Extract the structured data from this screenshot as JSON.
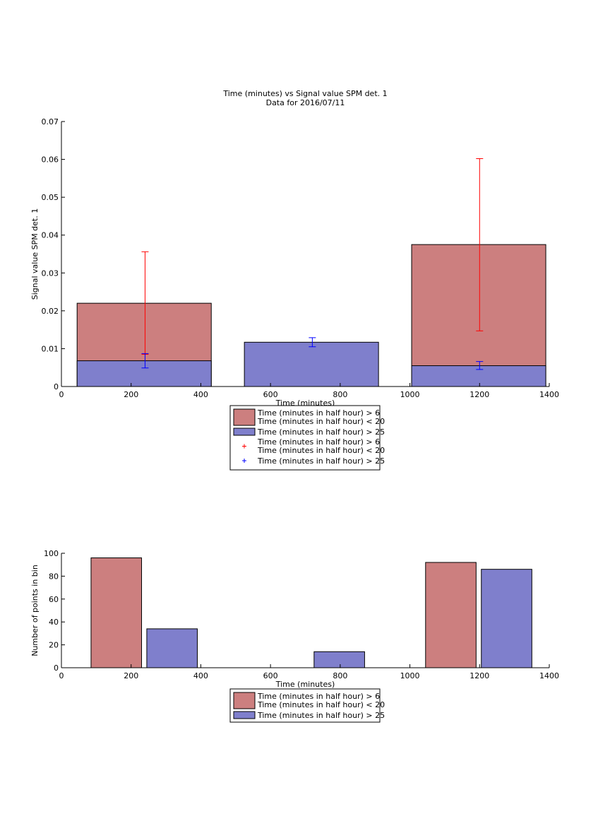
{
  "chart_data": [
    {
      "type": "bar",
      "title": "Time (minutes) vs Signal value SPM det. 1",
      "subtitle": "Data for 2016/07/11",
      "xlabel": "Time (minutes)",
      "ylabel": "Signal value SPM det. 1",
      "xlim": [
        0,
        1400
      ],
      "ylim": [
        0,
        0.07
      ],
      "xticks": [
        "0",
        "200",
        "400",
        "600",
        "800",
        "1000",
        "1200",
        "1400"
      ],
      "yticks": [
        "0",
        "0.01",
        "0.02",
        "0.03",
        "0.04",
        "0.05",
        "0.06",
        "0.07"
      ],
      "grid": false,
      "legend_position": "bottom-outside",
      "legend": [
        "Time (minutes in half hour) > 6\nTime (minutes in half hour) < 20",
        "Time (minutes in half hour) > 25",
        "Time (minutes in half hour) > 6\nTime (minutes in half hour) < 20",
        "Time (minutes in half hour) > 25"
      ],
      "bar_series": [
        {
          "color": "#cc7f7f",
          "bars": [
            {
              "x0": 45,
              "x1": 430,
              "value": 0.022
            },
            {
              "x0": 1005,
              "x1": 1390,
              "value": 0.0375
            }
          ]
        },
        {
          "color": "#7f7fcc",
          "bars": [
            {
              "x0": 45,
              "x1": 430,
              "value": 0.0068
            },
            {
              "x0": 525,
              "x1": 910,
              "value": 0.0117
            },
            {
              "x0": 1005,
              "x1": 1390,
              "value": 0.0055
            }
          ]
        }
      ],
      "errorbar_series": [
        {
          "color": "#ff0000",
          "points": [
            {
              "x": 240,
              "y": 0.022,
              "low": 0.0085,
              "high": 0.0356
            },
            {
              "x": 1200,
              "y": 0.0375,
              "low": 0.0147,
              "high": 0.0602
            }
          ]
        },
        {
          "color": "#0000ff",
          "points": [
            {
              "x": 240,
              "y": 0.0068,
              "low": 0.0049,
              "high": 0.0087
            },
            {
              "x": 720,
              "y": 0.0117,
              "low": 0.0105,
              "high": 0.0129
            },
            {
              "x": 1200,
              "y": 0.0055,
              "low": 0.0045,
              "high": 0.0066
            }
          ]
        }
      ]
    },
    {
      "type": "bar",
      "xlabel": "Time (minutes)",
      "ylabel": "Number of points in bin",
      "xlim": [
        0,
        1400
      ],
      "ylim": [
        0,
        100
      ],
      "xticks": [
        "0",
        "200",
        "400",
        "600",
        "800",
        "1000",
        "1200",
        "1400"
      ],
      "yticks": [
        "0",
        "20",
        "40",
        "60",
        "80",
        "100"
      ],
      "grid": false,
      "legend_position": "bottom-outside",
      "legend": [
        "Time (minutes in half hour) > 6\nTime (minutes in half hour) < 20",
        "Time (minutes in half hour) > 25"
      ],
      "bar_series": [
        {
          "color": "#cc7f7f",
          "bars": [
            {
              "x0": 85,
              "x1": 230,
              "value": 96
            },
            {
              "x0": 1045,
              "x1": 1190,
              "value": 92
            }
          ]
        },
        {
          "color": "#7f7fcc",
          "bars": [
            {
              "x0": 245,
              "x1": 390,
              "value": 34
            },
            {
              "x0": 725,
              "x1": 870,
              "value": 14
            },
            {
              "x0": 1205,
              "x1": 1350,
              "value": 86
            }
          ]
        }
      ]
    }
  ]
}
